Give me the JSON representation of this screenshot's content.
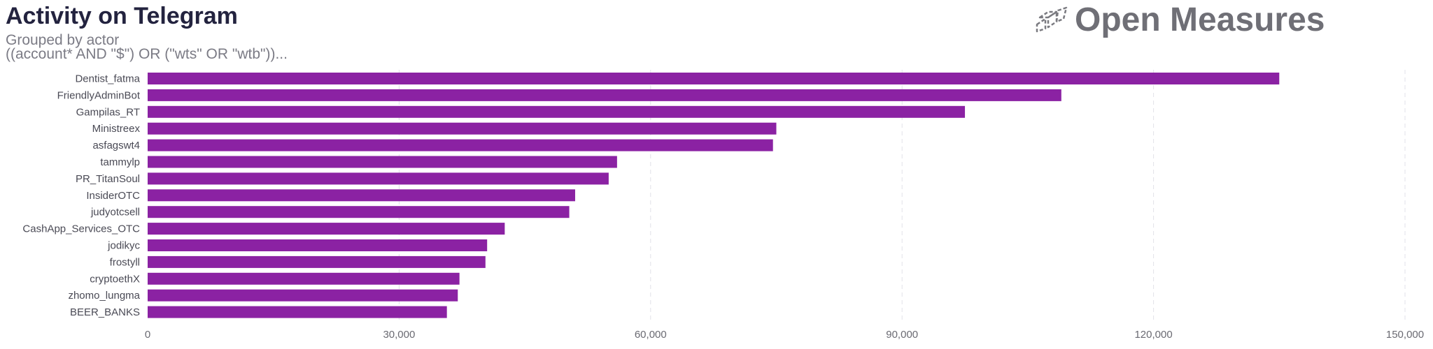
{
  "header": {
    "title": "Activity on Telegram",
    "subtitle_line1": "Grouped by actor",
    "subtitle_line2": "((account* AND \"$\") OR (\"wts\" OR \"wtb\"))..."
  },
  "brand": {
    "name": "Open Measures",
    "icon": "open-measures-logo-icon",
    "color": "#6f6f76"
  },
  "chart_data": {
    "type": "bar",
    "orientation": "horizontal",
    "title": "Activity on Telegram",
    "subtitle": "Grouped by actor",
    "categories": [
      "Dentist_fatma",
      "FriendlyAdminBot",
      "Gampilas_RT",
      "Ministreex",
      "asfagswt4",
      "tammylp",
      "PR_TitanSoul",
      "InsiderOTC",
      "judyotcsell",
      "CashApp_Services_OTC",
      "jodikyc",
      "frostyll",
      "cryptoethX",
      "zhomo_lungma",
      "BEER_BANKS"
    ],
    "values": [
      135000,
      109000,
      97500,
      75000,
      74600,
      56000,
      55000,
      51000,
      50300,
      42600,
      40500,
      40300,
      37200,
      37000,
      35700
    ],
    "xlim": [
      0,
      150000
    ],
    "xticks": [
      0,
      30000,
      60000,
      90000,
      120000,
      150000
    ],
    "xtick_labels": [
      "0",
      "30,000",
      "60,000",
      "90,000",
      "120,000",
      "150,000"
    ],
    "xlabel": "",
    "ylabel": "",
    "bar_color": "#8b22a3",
    "grid": "vertical-dashed",
    "legend": "none"
  }
}
